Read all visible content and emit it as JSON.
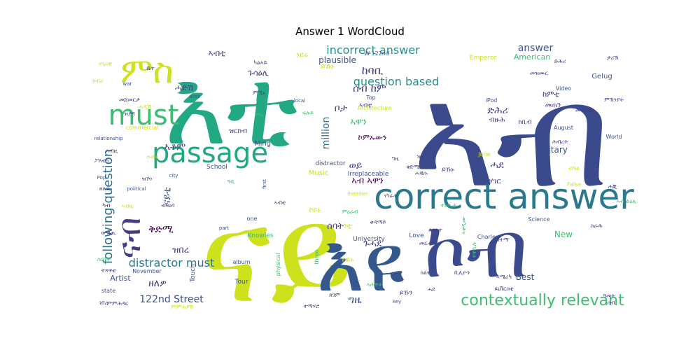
{
  "title": "Answer 1 WordCloud",
  "chart_data": {
    "type": "wordcloud",
    "title": "Answer 1 WordCloud",
    "colormap": "viridis",
    "words": [
      {
        "text": "ኣብ",
        "weight": 1.0,
        "color": "#3b4a8c",
        "rotate": false
      },
      {
        "text": "ናይ",
        "weight": 0.97,
        "color": "#cde11d",
        "rotate": false
      },
      {
        "text": "እቲ",
        "weight": 0.86,
        "color": "#23a884",
        "rotate": false
      },
      {
        "text": "እዩ",
        "weight": 0.62,
        "color": "#34578c",
        "rotate": false
      },
      {
        "text": "ኮብ",
        "weight": 0.56,
        "color": "#3b4a8c",
        "rotate": false
      },
      {
        "text": "correct answer",
        "weight": 0.42,
        "color": "#2a788e",
        "rotate": false
      },
      {
        "text": "passage",
        "weight": 0.36,
        "color": "#23a884",
        "rotate": false
      },
      {
        "text": "must",
        "weight": 0.34,
        "color": "#3fbc73",
        "rotate": false
      },
      {
        "text": "ምስ",
        "weight": 0.3,
        "color": "#cde11d",
        "rotate": false
      },
      {
        "text": "ናብ",
        "weight": 0.2,
        "color": "#433e85",
        "rotate": true
      },
      {
        "text": "contextually relevant",
        "weight": 0.16,
        "color": "#3fbc73",
        "rotate": false
      },
      {
        "text": "following question",
        "weight": 0.15,
        "color": "#2c728e",
        "rotate": true
      },
      {
        "text": "incorrect answer",
        "weight": 0.14,
        "color": "#21918c",
        "rotate": false
      },
      {
        "text": "question based",
        "weight": 0.14,
        "color": "#21918c",
        "rotate": false
      },
      {
        "text": "distractor must",
        "weight": 0.13,
        "color": "#2a788e",
        "rotate": false
      },
      {
        "text": "ዘለዎ",
        "weight": 0.12,
        "color": "#433e85",
        "rotate": false
      },
      {
        "text": "ቅድሚ",
        "weight": 0.12,
        "color": "#440154",
        "rotate": false
      },
      {
        "text": "ከባቢ",
        "weight": 0.12,
        "color": "#433e85",
        "rotate": false
      },
      {
        "text": "answer",
        "weight": 0.11,
        "color": "#3b528b",
        "rotate": false
      },
      {
        "text": "million",
        "weight": 0.1,
        "color": "#2c728e",
        "rotate": true
      },
      {
        "text": "ዝበረ",
        "weight": 0.1,
        "color": "#433e85",
        "rotate": false
      },
      {
        "text": "ግዜ",
        "weight": 0.1,
        "color": "#3b528b",
        "rotate": false
      },
      {
        "text": "ሰብ ከም",
        "weight": 0.1,
        "color": "#433e85",
        "rotate": false
      },
      {
        "text": "ቦታ",
        "weight": 0.1,
        "color": "#433e85",
        "rotate": false
      },
      {
        "text": "ኣዋን",
        "weight": 0.1,
        "color": "#3fbc73",
        "rotate": false
      },
      {
        "text": "ናይቲ",
        "weight": 0.1,
        "color": "#3b528b",
        "rotate": true
      },
      {
        "text": "ድሕሪ",
        "weight": 0.1,
        "color": "#433e85",
        "rotate": false
      },
      {
        "text": "ሓደ",
        "weight": 0.1,
        "color": "#433e85",
        "rotate": false
      },
      {
        "text": "ኣቶም",
        "weight": 0.1,
        "color": "#433e85",
        "rotate": false
      },
      {
        "text": "ኣብ ኣዋን",
        "weight": 0.09,
        "color": "#440154",
        "rotate": false
      },
      {
        "text": "122nd Street",
        "weight": 0.09,
        "color": "#3b528b",
        "rotate": false
      },
      {
        "text": "military",
        "weight": 0.08,
        "color": "#3b528b",
        "rotate": false
      },
      {
        "text": "plausible",
        "weight": 0.08,
        "color": "#3b528b",
        "rotate": false
      },
      {
        "text": "New",
        "weight": 0.08,
        "color": "#3fbc73",
        "rotate": false
      },
      {
        "text": "Best",
        "weight": 0.08,
        "color": "#3b528b",
        "rotate": false
      },
      {
        "text": "ወይ",
        "weight": 0.08,
        "color": "#433e85",
        "rotate": false
      },
      {
        "text": "ኣብቲ",
        "weight": 0.08,
        "color": "#433e85",
        "rotate": false
      },
      {
        "text": "ጉሓደ",
        "weight": 0.08,
        "color": "#433e85",
        "rotate": false
      },
      {
        "text": "ሰባት",
        "weight": 0.08,
        "color": "#433e85",
        "rotate": false
      },
      {
        "text": "Artist",
        "weight": 0.07,
        "color": "#3b528b",
        "rotate": false
      },
      {
        "text": "ኮምኡውን",
        "weight": 0.07,
        "color": "#440154",
        "rotate": false
      },
      {
        "text": "ከምቲ",
        "weight": 0.07,
        "color": "#433e85",
        "rotate": false
      },
      {
        "text": "ጉሳዕሊ",
        "weight": 0.07,
        "color": "#433e85",
        "rotate": false
      },
      {
        "text": "ሓድሽ",
        "weight": 0.07,
        "color": "#433e85",
        "rotate": false
      },
      {
        "text": "ኣብቲ",
        "weight": 0.06,
        "color": "#433e85",
        "rotate": false
      },
      {
        "text": "ሃገር",
        "weight": 0.06,
        "color": "#433e85",
        "rotate": false
      },
      {
        "text": "ዝርከብ",
        "weight": 0.06,
        "color": "#433e85",
        "rotate": false
      },
      {
        "text": "መጠን",
        "weight": 0.06,
        "color": "#433e85",
        "rotate": false
      },
      {
        "text": "ብዙሕ",
        "weight": 0.06,
        "color": "#433e85",
        "rotate": false
      },
      {
        "text": "ነቲ",
        "weight": 0.07,
        "color": "#cde11d",
        "rotate": false
      },
      {
        "text": "ነይሩ",
        "weight": 0.06,
        "color": "#cde11d",
        "rotate": false
      },
      {
        "text": "ይኹኑ",
        "weight": 0.06,
        "color": "#cde11d",
        "rotate": false
      },
      {
        "text": "ኮይኑ",
        "weight": 0.06,
        "color": "#cde11d",
        "rotate": false
      },
      {
        "text": "ኮይኑ",
        "weight": 0.05,
        "color": "#cde11d",
        "rotate": false
      },
      {
        "text": "Music",
        "weight": 0.06,
        "color": "#cde11d",
        "rotate": false
      },
      {
        "text": "American",
        "weight": 0.06,
        "color": "#3fbc73",
        "rotate": false
      },
      {
        "text": "Gelug",
        "weight": 0.05,
        "color": "#3b528b",
        "rotate": false
      },
      {
        "text": "Emperor",
        "weight": 0.05,
        "color": "#cde11d",
        "rotate": false
      },
      {
        "text": "Ming",
        "weight": 0.05,
        "color": "#3b528b",
        "rotate": false
      },
      {
        "text": "School",
        "weight": 0.05,
        "color": "#3b528b",
        "rotate": false
      },
      {
        "text": "distractor",
        "weight": 0.05,
        "color": "#3b528b",
        "rotate": false
      },
      {
        "text": "Irreplaceable",
        "weight": 0.05,
        "color": "#3b528b",
        "rotate": false
      },
      {
        "text": "University",
        "weight": 0.05,
        "color": "#3b528b",
        "rotate": false
      },
      {
        "text": "Architecture",
        "weight": 0.05,
        "color": "#cde11d",
        "rotate": false
      },
      {
        "text": "Love",
        "weight": 0.05,
        "color": "#3b528b",
        "rotate": false
      },
      {
        "text": "Knowles",
        "weight": 0.05,
        "color": "#3fbc73",
        "rotate": false
      },
      {
        "text": "Touch",
        "weight": 0.05,
        "color": "#3b528b",
        "rotate": true
      },
      {
        "text": "Tour",
        "weight": 0.05,
        "color": "#3b528b",
        "rotate": false
      },
      {
        "text": "album",
        "weight": 0.04,
        "color": "#3b528b",
        "rotate": false
      },
      {
        "text": "physical",
        "weight": 0.04,
        "color": "#3fbc73",
        "rotate": true
      },
      {
        "text": "three",
        "weight": 0.04,
        "color": "#3fbc73",
        "rotate": true
      },
      {
        "text": "member",
        "weight": 0.04,
        "color": "#cde11d",
        "rotate": false
      },
      {
        "text": "Video",
        "weight": 0.04,
        "color": "#3b528b",
        "rotate": false
      },
      {
        "text": "August",
        "weight": 0.04,
        "color": "#3b528b",
        "rotate": false
      },
      {
        "text": "World",
        "weight": 0.04,
        "color": "#3b528b",
        "rotate": false
      },
      {
        "text": "iPod",
        "weight": 0.04,
        "color": "#3b528b",
        "rotate": false
      },
      {
        "text": "June",
        "weight": 0.04,
        "color": "#cde11d",
        "rotate": false
      },
      {
        "text": "False",
        "weight": 0.04,
        "color": "#cde11d",
        "rotate": false
      },
      {
        "text": "Science",
        "weight": 0.04,
        "color": "#3b528b",
        "rotate": false
      },
      {
        "text": "Charles",
        "weight": 0.04,
        "color": "#3b528b",
        "rotate": false
      },
      {
        "text": "November",
        "weight": 0.04,
        "color": "#3b528b",
        "rotate": false
      },
      {
        "text": "state",
        "weight": 0.04,
        "color": "#3b528b",
        "rotate": false
      },
      {
        "text": "relationship",
        "weight": 0.04,
        "color": "#3b528b",
        "rotate": false
      },
      {
        "text": "commercial",
        "weight": 0.04,
        "color": "#cde11d",
        "rotate": false
      },
      {
        "text": "political",
        "weight": 0.04,
        "color": "#3b528b",
        "rotate": false
      },
      {
        "text": "Pop",
        "weight": 0.04,
        "color": "#3b528b",
        "rotate": false
      },
      {
        "text": "city",
        "weight": 0.04,
        "color": "#3b528b",
        "rotate": false
      },
      {
        "text": "area",
        "weight": 0.04,
        "color": "#3b528b",
        "rotate": false
      },
      {
        "text": "war",
        "weight": 0.04,
        "color": "#3b528b",
        "rotate": false
      },
      {
        "text": "local",
        "weight": 0.04,
        "color": "#3b528b",
        "rotate": false
      },
      {
        "text": "Top",
        "weight": 0.04,
        "color": "#3b528b",
        "rotate": false
      },
      {
        "text": "W 122nd",
        "weight": 0.04,
        "color": "#3b528b",
        "rotate": false
      },
      {
        "text": "first",
        "weight": 0.04,
        "color": "#3b528b",
        "rotate": true
      },
      {
        "text": "one",
        "weight": 0.04,
        "color": "#3b528b",
        "rotate": false
      },
      {
        "text": "part",
        "weight": 0.04,
        "color": "#3b528b",
        "rotate": false
      },
      {
        "text": "key",
        "weight": 0.04,
        "color": "#3b528b",
        "rotate": false
      },
      {
        "text": "ይኹን",
        "weight": 0.05,
        "color": "#433e85",
        "rotate": false
      },
      {
        "text": "ይኹኑ",
        "weight": 0.04,
        "color": "#433e85",
        "rotate": false
      },
      {
        "text": "ከቢብ",
        "weight": 0.05,
        "color": "#433e85",
        "rotate": false
      },
      {
        "text": "ግዚ",
        "weight": 0.04,
        "color": "#433e85",
        "rotate": false
      },
      {
        "text": "ሓደ",
        "weight": 0.04,
        "color": "#433e85",
        "rotate": false
      },
      {
        "text": "ነበረ",
        "weight": 0.04,
        "color": "#433e85",
        "rotate": false
      },
      {
        "text": "ቅድሚ",
        "weight": 0.04,
        "color": "#433e85",
        "rotate": false
      },
      {
        "text": "ድሕሪ",
        "weight": 0.04,
        "color": "#433e85",
        "rotate": false
      },
      {
        "text": "መንግስቲ",
        "weight": 0.04,
        "color": "#433e85",
        "rotate": false
      },
      {
        "text": "ሰብ",
        "weight": 0.04,
        "color": "#433e85",
        "rotate": false
      },
      {
        "text": "ዓመት",
        "weight": 0.04,
        "color": "#433e85",
        "rotate": false
      },
      {
        "text": "ስራሕ",
        "weight": 0.04,
        "color": "#433e85",
        "rotate": false
      },
      {
        "text": "ታሪኽ",
        "weight": 0.04,
        "color": "#433e85",
        "rotate": false
      },
      {
        "text": "ከተማ",
        "weight": 0.04,
        "color": "#433e85",
        "rotate": false
      },
      {
        "text": "ሕብረት",
        "weight": 0.04,
        "color": "#433e85",
        "rotate": false
      },
      {
        "text": "ምኽንያት",
        "weight": 0.04,
        "color": "#433e85",
        "rotate": false
      },
      {
        "text": "ክልተ",
        "weight": 0.04,
        "color": "#433e85",
        "rotate": false
      },
      {
        "text": "ሰለስተ",
        "weight": 0.04,
        "color": "#433e85",
        "rotate": false
      },
      {
        "text": "ሕጂ",
        "weight": 0.04,
        "color": "#433e85",
        "rotate": false
      },
      {
        "text": "ኣሜሪካ",
        "weight": 0.04,
        "color": "#433e85",
        "rotate": false
      },
      {
        "text": "መዝሙር",
        "weight": 0.04,
        "color": "#433e85",
        "rotate": false
      },
      {
        "text": "ምምሕዳር",
        "weight": 0.04,
        "color": "#433e85",
        "rotate": false
      },
      {
        "text": "ዩኒቨርስቲ",
        "weight": 0.04,
        "color": "#433e85",
        "rotate": false
      },
      {
        "text": "ቤተ",
        "weight": 0.04,
        "color": "#433e85",
        "rotate": false
      },
      {
        "text": "መርሓ",
        "weight": 0.04,
        "color": "#433e85",
        "rotate": false
      },
      {
        "text": "ሃገራት",
        "weight": 0.04,
        "color": "#433e85",
        "rotate": false
      },
      {
        "text": "ዝኾነ",
        "weight": 0.04,
        "color": "#433e85",
        "rotate": false
      },
      {
        "text": "ዘለዉ",
        "weight": 0.04,
        "color": "#433e85",
        "rotate": false
      },
      {
        "text": "ብዛዕባ",
        "weight": 0.04,
        "color": "#433e85",
        "rotate": false
      },
      {
        "text": "ምዃኑ",
        "weight": 0.04,
        "color": "#433e85",
        "rotate": false
      },
      {
        "text": "ነዚ",
        "weight": 0.04,
        "color": "#433e85",
        "rotate": false
      },
      {
        "text": "ካብ",
        "weight": 0.04,
        "color": "#433e85",
        "rotate": false
      },
      {
        "text": "ውሽጢ",
        "weight": 0.04,
        "color": "#433e85",
        "rotate": false
      },
      {
        "text": "ቀዳማይ",
        "weight": 0.04,
        "color": "#433e85",
        "rotate": false
      },
      {
        "text": "ካልኣይ",
        "weight": 0.04,
        "color": "#433e85",
        "rotate": false
      },
      {
        "text": "መጀመርታ",
        "weight": 0.04,
        "color": "#433e85",
        "rotate": false
      },
      {
        "text": "ሓዊሱ",
        "weight": 0.04,
        "color": "#433e85",
        "rotate": false
      },
      {
        "text": "ጸገም",
        "weight": 0.04,
        "color": "#433e85",
        "rotate": false
      },
      {
        "text": "ኣብቲ",
        "weight": 0.04,
        "color": "#433e85",
        "rotate": false
      },
      {
        "text": "ተማሃሮ",
        "weight": 0.04,
        "color": "#433e85",
        "rotate": false
      },
      {
        "text": "ፖለቲካ",
        "weight": 0.04,
        "color": "#433e85",
        "rotate": false
      },
      {
        "text": "ቢሊዮን",
        "weight": 0.04,
        "color": "#433e85",
        "rotate": false
      },
      {
        "text": "ዝያዳ",
        "weight": 0.04,
        "color": "#433e85",
        "rotate": false
      },
      {
        "text": "ተጻዋቲ",
        "weight": 0.04,
        "color": "#433e85",
        "rotate": false
      },
      {
        "text": "ኣብዚ",
        "weight": 0.04,
        "color": "#433e85",
        "rotate": false
      },
      {
        "text": "ኣብዚ",
        "weight": 0.04,
        "color": "#cde11d",
        "rotate": false
      },
      {
        "text": "ኮብኣ",
        "weight": 0.04,
        "color": "#cde11d",
        "rotate": false
      },
      {
        "text": "ሓዲሽ",
        "weight": 0.04,
        "color": "#cde11d",
        "rotate": false
      },
      {
        "text": "ብዓል",
        "weight": 0.04,
        "color": "#cde11d",
        "rotate": false
      },
      {
        "text": "ክብሪ",
        "weight": 0.04,
        "color": "#cde11d",
        "rotate": false
      },
      {
        "text": "ሃገራዊ",
        "weight": 0.04,
        "color": "#cde11d",
        "rotate": false
      },
      {
        "text": "ምምሕያሽ",
        "weight": 0.04,
        "color": "#cde11d",
        "rotate": false
      },
      {
        "text": "ተበጺሑ",
        "weight": 0.04,
        "color": "#3fbc73",
        "rotate": false
      },
      {
        "text": "ኣሕዋት",
        "weight": 0.04,
        "color": "#3fbc73",
        "rotate": false
      },
      {
        "text": "ስርዓት",
        "weight": 0.04,
        "color": "#3fbc73",
        "rotate": false
      },
      {
        "text": "ምዕራብ",
        "weight": 0.04,
        "color": "#3fbc73",
        "rotate": false
      },
      {
        "text": "ኣብ ልዕሊ",
        "weight": 0.04,
        "color": "#3fbc73",
        "rotate": false
      },
      {
        "text": "ዓቢ",
        "weight": 0.04,
        "color": "#3fbc73",
        "rotate": false
      },
      {
        "text": "ምስ",
        "weight": 0.04,
        "color": "#3fbc73",
        "rotate": false
      },
      {
        "text": "ፍሉይ",
        "weight": 0.04,
        "color": "#3fbc73",
        "rotate": false
      },
      {
        "text": "ተቐቢሉ",
        "weight": 0.04,
        "color": "#3fbc73",
        "rotate": true
      },
      {
        "text": "ኣቀዲሙ",
        "weight": 0.04,
        "color": "#3fbc73",
        "rotate": true
      },
      {
        "text": "ዝርከቡ",
        "weight": 0.04,
        "color": "#433e85",
        "rotate": true
      },
      {
        "text": "ኣዋርሕ",
        "weight": 0.04,
        "color": "#433e85",
        "rotate": true
      },
      {
        "text": "ብፍላይ",
        "weight": 0.04,
        "color": "#433e85",
        "rotate": true
      }
    ]
  }
}
